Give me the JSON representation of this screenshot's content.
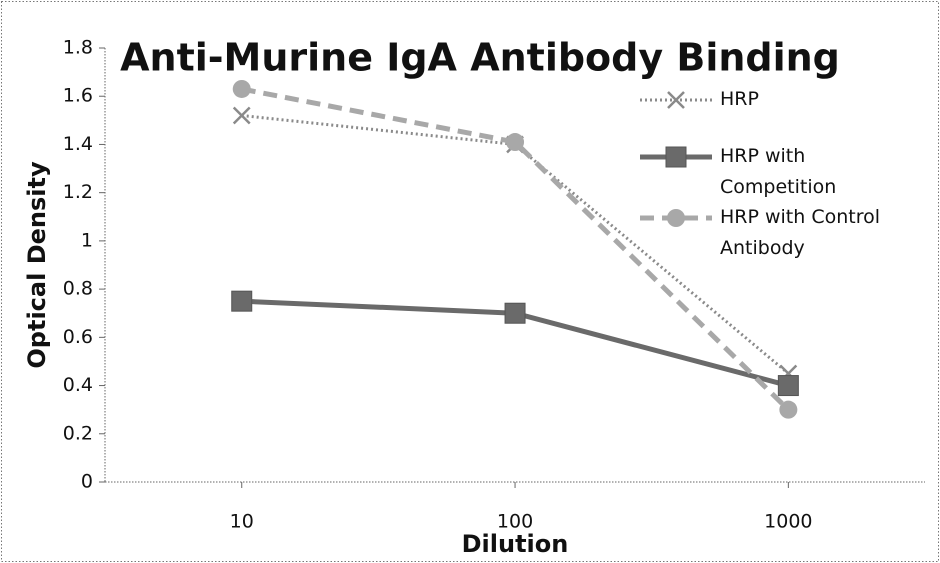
{
  "chart_data": {
    "type": "line",
    "title": "Anti-Murine IgA Antibody Binding",
    "x_label": "Dilution",
    "y_label": "Optical Density",
    "x": [
      10,
      100,
      1000
    ],
    "xscale": "log",
    "xlim": [
      3.16,
      3162
    ],
    "xticks": [
      10,
      100,
      1000
    ],
    "ylim": [
      0,
      1.8
    ],
    "yticks": [
      0,
      0.2,
      0.4,
      0.6,
      0.8,
      1,
      1.2,
      1.4,
      1.6,
      1.8
    ],
    "legend": "upper right",
    "series": [
      {
        "name": "HRP",
        "color": "#8a8a8a",
        "style": "dotted",
        "marker": "x",
        "values": [
          1.52,
          1.4,
          0.45
        ]
      },
      {
        "name": "HRP with Competition",
        "color": "#6a6a6a",
        "style": "solid",
        "marker": "square",
        "values": [
          0.75,
          0.7,
          0.4
        ]
      },
      {
        "name": "HRP with Control Antibody",
        "color": "#a8a8a8",
        "style": "dashed",
        "marker": "circle",
        "values": [
          1.63,
          1.41,
          0.3
        ]
      }
    ]
  }
}
